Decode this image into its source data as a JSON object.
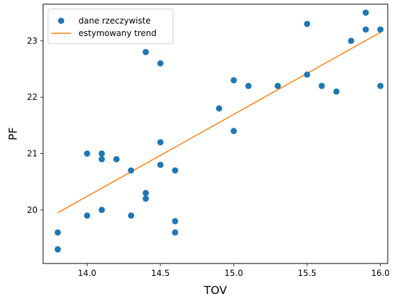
{
  "chart_data": {
    "type": "scatter",
    "title": "",
    "xlabel": "TOV",
    "ylabel": "PF",
    "xlim": [
      13.7,
      16.05
    ],
    "ylim": [
      19.05,
      23.65
    ],
    "xticks": [
      "14.0",
      "14.5",
      "15.0",
      "15.5",
      "16.0"
    ],
    "yticks": [
      "20",
      "21",
      "22",
      "23"
    ],
    "grid": false,
    "legend_position": "top-left",
    "series": [
      {
        "name": "dane rzeczywiste",
        "kind": "scatter",
        "color": "#1f77b4",
        "points": [
          {
            "x": 13.8,
            "y": 19.6
          },
          {
            "x": 13.8,
            "y": 19.3
          },
          {
            "x": 14.0,
            "y": 21.0
          },
          {
            "x": 14.0,
            "y": 19.9
          },
          {
            "x": 14.1,
            "y": 21.0
          },
          {
            "x": 14.1,
            "y": 20.9
          },
          {
            "x": 14.1,
            "y": 20.0
          },
          {
            "x": 14.2,
            "y": 20.9
          },
          {
            "x": 14.3,
            "y": 20.7
          },
          {
            "x": 14.3,
            "y": 19.9
          },
          {
            "x": 14.4,
            "y": 22.8
          },
          {
            "x": 14.4,
            "y": 20.3
          },
          {
            "x": 14.4,
            "y": 20.2
          },
          {
            "x": 14.5,
            "y": 22.6
          },
          {
            "x": 14.5,
            "y": 21.2
          },
          {
            "x": 14.5,
            "y": 20.8
          },
          {
            "x": 14.6,
            "y": 20.7
          },
          {
            "x": 14.6,
            "y": 19.8
          },
          {
            "x": 14.6,
            "y": 19.6
          },
          {
            "x": 14.9,
            "y": 21.8
          },
          {
            "x": 15.0,
            "y": 22.3
          },
          {
            "x": 15.0,
            "y": 21.4
          },
          {
            "x": 15.1,
            "y": 22.2
          },
          {
            "x": 15.3,
            "y": 22.2
          },
          {
            "x": 15.5,
            "y": 23.3
          },
          {
            "x": 15.5,
            "y": 22.4
          },
          {
            "x": 15.6,
            "y": 22.2
          },
          {
            "x": 15.7,
            "y": 22.1
          },
          {
            "x": 15.8,
            "y": 23.0
          },
          {
            "x": 15.9,
            "y": 23.5
          },
          {
            "x": 15.9,
            "y": 23.2
          },
          {
            "x": 16.0,
            "y": 23.2
          },
          {
            "x": 16.0,
            "y": 22.2
          }
        ]
      },
      {
        "name": "estymowany trend",
        "kind": "line",
        "color": "#ff7f0e",
        "points": [
          {
            "x": 13.8,
            "y": 19.95
          },
          {
            "x": 16.0,
            "y": 23.15
          }
        ]
      }
    ]
  }
}
